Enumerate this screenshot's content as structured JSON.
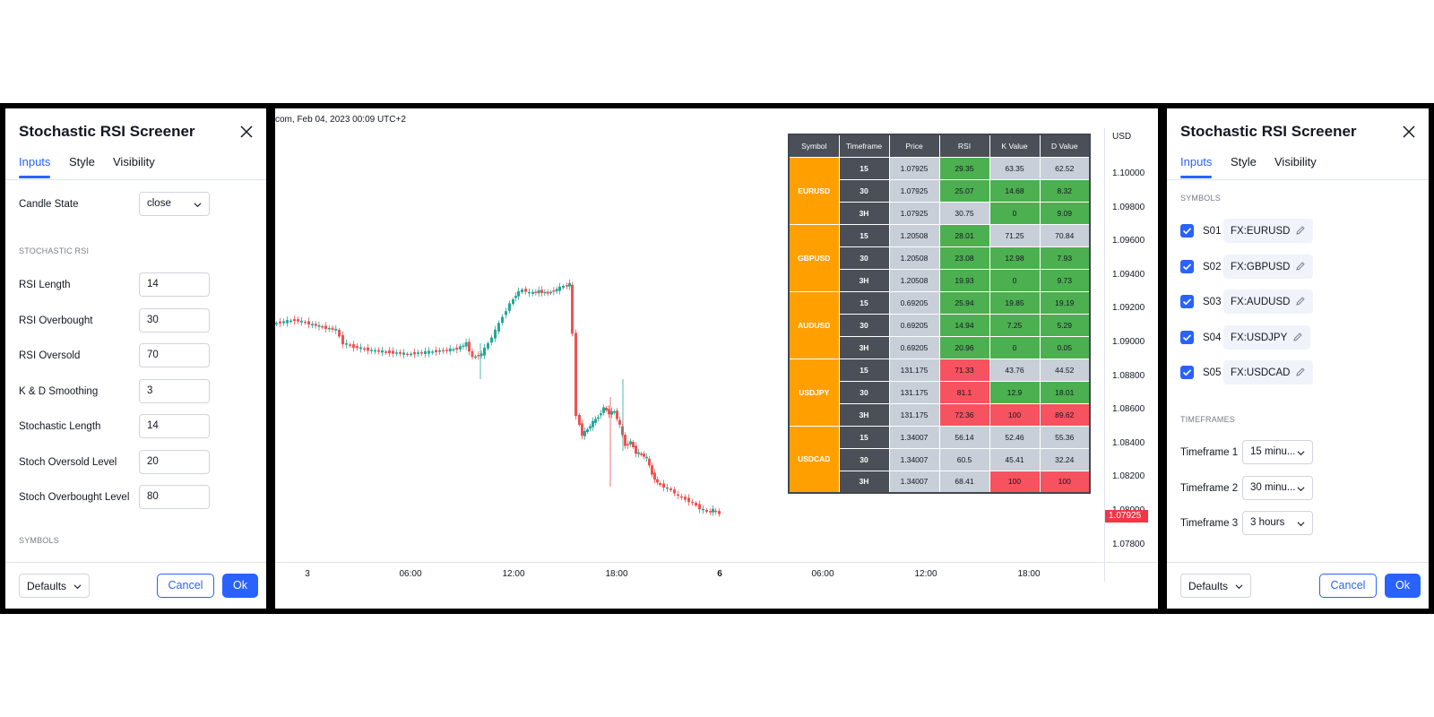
{
  "left_dialog": {
    "title": "Stochastic RSI Screener",
    "tabs": [
      "Inputs",
      "Style",
      "Visibility"
    ],
    "candle_state": {
      "label": "Candle State",
      "value": "close"
    },
    "section_stoch": "STOCHASTIC RSI",
    "fields": [
      {
        "label": "RSI Length",
        "value": "14"
      },
      {
        "label": "RSI Overbought",
        "value": "30"
      },
      {
        "label": "RSI Oversold",
        "value": "70"
      },
      {
        "label": "K & D Smoothing",
        "value": "3"
      },
      {
        "label": "Stochastic Length",
        "value": "14"
      },
      {
        "label": "Stoch Oversold Level",
        "value": "20"
      },
      {
        "label": "Stoch Overbought Level",
        "value": "80"
      }
    ],
    "section_symbols": "SYMBOLS",
    "footer": {
      "defaults": "Defaults",
      "cancel": "Cancel",
      "ok": "Ok"
    }
  },
  "right_dialog": {
    "title": "Stochastic RSI Screener",
    "tabs": [
      "Inputs",
      "Style",
      "Visibility"
    ],
    "section_symbols": "SYMBOLS",
    "symbols": [
      {
        "id": "S01",
        "value": "FX:EURUSD",
        "checked": true
      },
      {
        "id": "S02",
        "value": "FX:GBPUSD",
        "checked": true
      },
      {
        "id": "S03",
        "value": "FX:AUDUSD",
        "checked": true
      },
      {
        "id": "S04",
        "value": "FX:USDJPY",
        "checked": true
      },
      {
        "id": "S05",
        "value": "FX:USDCAD",
        "checked": true
      }
    ],
    "section_timeframes": "TIMEFRAMES",
    "timeframes": [
      {
        "label": "Timeframe 1",
        "value": "15 minu..."
      },
      {
        "label": "Timeframe 2",
        "value": "30 minu..."
      },
      {
        "label": "Timeframe 3",
        "value": "3 hours"
      }
    ],
    "footer": {
      "defaults": "Defaults",
      "cancel": "Cancel",
      "ok": "Ok"
    }
  },
  "chart": {
    "header": "com, Feb 04, 2023 00:09 UTC+2",
    "currency": "USD",
    "price_ticks": [
      "1.10000",
      "1.09800",
      "1.09600",
      "1.09400",
      "1.09200",
      "1.09000",
      "1.08800",
      "1.08600",
      "1.08400",
      "1.08200",
      "1.08000",
      "1.07800"
    ],
    "last_price": "1.07925",
    "time_ticks": [
      {
        "label": "3",
        "bold": false
      },
      {
        "label": "06:00",
        "bold": false
      },
      {
        "label": "12:00",
        "bold": false
      },
      {
        "label": "18:00",
        "bold": false
      },
      {
        "label": "6",
        "bold": true
      },
      {
        "label": "06:00",
        "bold": false
      },
      {
        "label": "12:00",
        "bold": false
      },
      {
        "label": "18:00",
        "bold": false
      }
    ],
    "colors": {
      "up": "#26a69a",
      "down": "#ef5350"
    }
  },
  "screener": {
    "headers": [
      "Symbol",
      "Timeframe",
      "Price",
      "RSI",
      "K Value",
      "D Value"
    ],
    "groups": [
      {
        "symbol": "EURUSD",
        "rows": [
          {
            "tf": "15",
            "price": "1.07925",
            "rsi": "29.35",
            "k": "63.35",
            "d": "62.52",
            "c": [
              "grey",
              "green",
              "grey",
              "grey"
            ]
          },
          {
            "tf": "30",
            "price": "1.07925",
            "rsi": "25.07",
            "k": "14.68",
            "d": "8.32",
            "c": [
              "grey",
              "green",
              "green",
              "green"
            ]
          },
          {
            "tf": "3H",
            "price": "1.07925",
            "rsi": "30.75",
            "k": "0",
            "d": "9.09",
            "c": [
              "grey",
              "grey",
              "green",
              "green"
            ]
          }
        ]
      },
      {
        "symbol": "GBPUSD",
        "rows": [
          {
            "tf": "15",
            "price": "1.20508",
            "rsi": "28.01",
            "k": "71.25",
            "d": "70.84",
            "c": [
              "grey",
              "green",
              "grey",
              "grey"
            ]
          },
          {
            "tf": "30",
            "price": "1.20508",
            "rsi": "23.08",
            "k": "12.98",
            "d": "7.93",
            "c": [
              "grey",
              "green",
              "green",
              "green"
            ]
          },
          {
            "tf": "3H",
            "price": "1.20508",
            "rsi": "19.93",
            "k": "0",
            "d": "9.73",
            "c": [
              "grey",
              "green",
              "green",
              "green"
            ]
          }
        ]
      },
      {
        "symbol": "AUDUSD",
        "rows": [
          {
            "tf": "15",
            "price": "0.69205",
            "rsi": "25.94",
            "k": "19.85",
            "d": "19.19",
            "c": [
              "grey",
              "green",
              "green",
              "green"
            ]
          },
          {
            "tf": "30",
            "price": "0.69205",
            "rsi": "14.94",
            "k": "7.25",
            "d": "5.29",
            "c": [
              "grey",
              "green",
              "green",
              "green"
            ]
          },
          {
            "tf": "3H",
            "price": "0.69205",
            "rsi": "20.96",
            "k": "0",
            "d": "0.05",
            "c": [
              "grey",
              "green",
              "green",
              "green"
            ]
          }
        ]
      },
      {
        "symbol": "USDJPY",
        "rows": [
          {
            "tf": "15",
            "price": "131.175",
            "rsi": "71.33",
            "k": "43.76",
            "d": "44.52",
            "c": [
              "grey",
              "red",
              "grey",
              "grey"
            ]
          },
          {
            "tf": "30",
            "price": "131.175",
            "rsi": "81.1",
            "k": "12.9",
            "d": "18.01",
            "c": [
              "grey",
              "red",
              "green",
              "green"
            ]
          },
          {
            "tf": "3H",
            "price": "131.175",
            "rsi": "72.36",
            "k": "100",
            "d": "89.62",
            "c": [
              "grey",
              "red",
              "red",
              "red"
            ]
          }
        ]
      },
      {
        "symbol": "USDCAD",
        "rows": [
          {
            "tf": "15",
            "price": "1.34007",
            "rsi": "56.14",
            "k": "52.46",
            "d": "55.36",
            "c": [
              "grey",
              "grey",
              "grey",
              "grey"
            ]
          },
          {
            "tf": "30",
            "price": "1.34007",
            "rsi": "60.5",
            "k": "45.41",
            "d": "32.24",
            "c": [
              "grey",
              "grey",
              "grey",
              "grey"
            ]
          },
          {
            "tf": "3H",
            "price": "1.34007",
            "rsi": "68.41",
            "k": "100",
            "d": "100",
            "c": [
              "grey",
              "grey",
              "red",
              "red"
            ]
          }
        ]
      }
    ]
  }
}
